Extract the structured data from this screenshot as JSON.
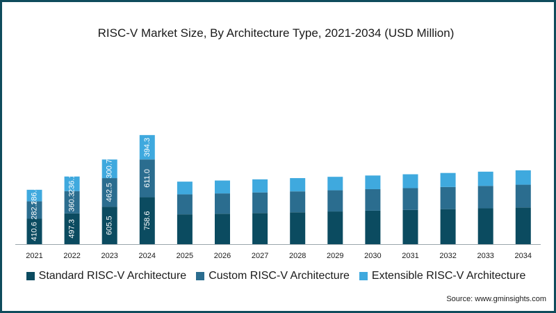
{
  "colors": {
    "standard": "#0b4b60",
    "custom": "#2b6d8f",
    "extensible": "#3fa9de",
    "border": "#0f4c5c"
  },
  "chart_data": {
    "type": "bar",
    "stacked": true,
    "title": "RISC-V Market Size, By Architecture Type, 2021-2034 (USD Million)",
    "xlabel": "",
    "ylabel": "",
    "categories": [
      "2021",
      "2022",
      "2023",
      "2024",
      "2025",
      "2026",
      "2027",
      "2028",
      "2029",
      "2030",
      "2031",
      "2032",
      "2033",
      "2034"
    ],
    "series": [
      {
        "name": "Standard RISC-V Architecture",
        "values": [
          410.6,
          497.3,
          605.5,
          758.6,
          482,
          492,
          503,
          515,
          528,
          541,
          553,
          566,
          579,
          593
        ],
        "labels": [
          "410.6",
          "497.3",
          "605.5",
          "758.6",
          "",
          "",
          "",
          "",
          "",
          "",
          "",
          "",
          "",
          ""
        ]
      },
      {
        "name": "Custom RISC-V Architecture",
        "values": [
          282.2,
          360.3,
          462.5,
          611.0,
          323,
          328,
          333,
          338,
          343,
          348,
          353,
          358,
          363,
          368
        ],
        "labels": [
          "282.2",
          "360.3",
          "462.5",
          "611.0",
          "",
          "",
          "",
          "",
          "",
          "",
          "",
          "",
          "",
          ""
        ]
      },
      {
        "name": "Extensible RISC-V Architecture",
        "values": [
          186.4,
          236.1,
          300.7,
          394.3,
          206,
          209,
          212,
          215,
          218,
          221,
          224,
          227,
          230,
          233
        ],
        "labels": [
          "186.4",
          "236.1",
          "300.7",
          "394.3",
          "",
          "",
          "",
          "",
          "",
          "",
          "",
          "",
          "",
          ""
        ]
      }
    ],
    "legend_position": "bottom",
    "grid": false
  },
  "source": "Source: www.gminsights.com"
}
